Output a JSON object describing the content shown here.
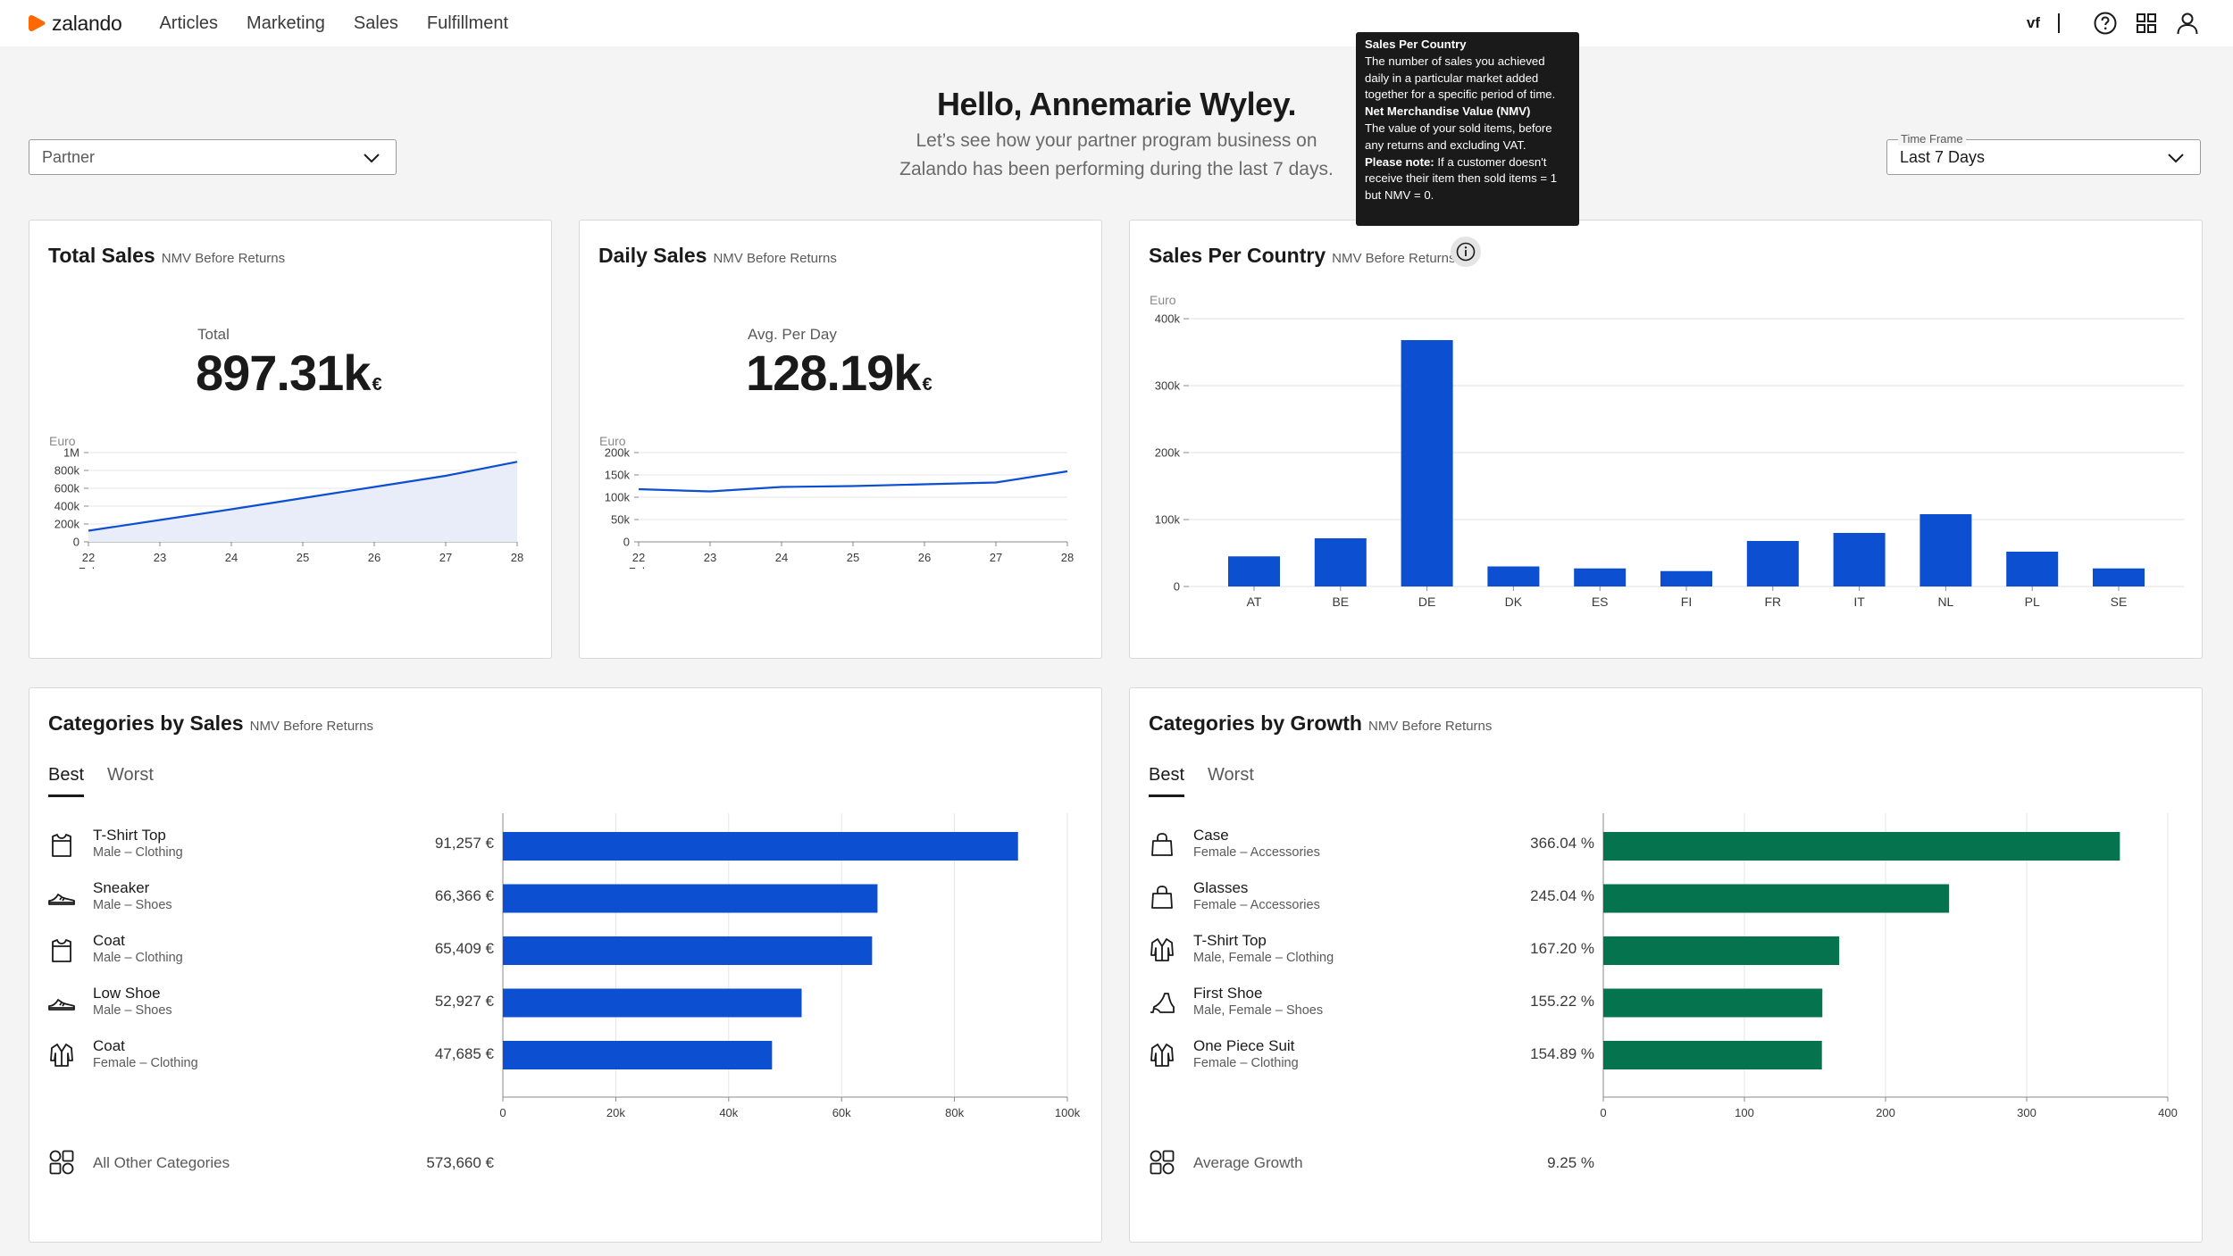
{
  "app": {
    "logo_text": "zalando"
  },
  "nav": {
    "items": [
      "Articles",
      "Marketing",
      "Sales",
      "Fulfillment"
    ]
  },
  "user": {
    "initials": "vf"
  },
  "greeting": {
    "title": "Hello, Annemarie Wyley.",
    "line1": "Let’s see how your partner program business on",
    "line2": "Zalando has been performing during the last 7 days."
  },
  "filters": {
    "partner": {
      "value": "Partner"
    },
    "timeframe": {
      "legend": "Time Frame",
      "value": "Last 7 Days"
    }
  },
  "tooltip": {
    "h1": "Sales Per Country",
    "p1": "The number of sales you achieved daily in a particular market added together for a specific period of time.",
    "h2": "Net Merchandise Value (NMV)",
    "p2": "The value of your sold items, before any returns and excluding VAT.",
    "h3": "Please note:",
    "p3": "If a customer doesn't receive their item then sold items = 1 but NMV = 0."
  },
  "cards": {
    "total": {
      "title": "Total Sales",
      "subtitle": "NMV Before Returns",
      "kpi_label": "Total",
      "kpi_value": "897.31k",
      "kpi_unit": "€"
    },
    "daily": {
      "title": "Daily Sales",
      "subtitle": "NMV Before Returns",
      "kpi_label": "Avg. Per Day",
      "kpi_value": "128.19k",
      "kpi_unit": "€"
    },
    "country": {
      "title": "Sales Per Country",
      "subtitle": "NMV Before Returns"
    },
    "cat_sales": {
      "title": "Categories by Sales",
      "subtitle": "NMV Before Returns",
      "tabs": [
        "Best",
        "Worst"
      ],
      "items": [
        {
          "name": "T-Shirt Top",
          "sub": "Male – Clothing",
          "value_label": "91,257 €",
          "icon": "tshirt-icon"
        },
        {
          "name": "Sneaker",
          "sub": "Male – Shoes",
          "value_label": "66,366 €",
          "icon": "sneaker-icon"
        },
        {
          "name": "Coat",
          "sub": "Male – Clothing",
          "value_label": "65,409 €",
          "icon": "tshirt-icon"
        },
        {
          "name": "Low Shoe",
          "sub": "Male – Shoes",
          "value_label": "52,927 €",
          "icon": "sneaker-icon"
        },
        {
          "name": "Coat",
          "sub": "Female – Clothing",
          "value_label": "47,685 €",
          "icon": "coat-icon"
        }
      ],
      "footer": {
        "name": "All Other Categories",
        "value": "573,660 €"
      }
    },
    "cat_growth": {
      "title": "Categories by Growth",
      "subtitle": "NMV Before Returns",
      "tabs": [
        "Best",
        "Worst"
      ],
      "items": [
        {
          "name": "Case",
          "sub": "Female – Accessories",
          "value_label": "366.04 %",
          "icon": "bag-icon"
        },
        {
          "name": "Glasses",
          "sub": "Female – Accessories",
          "value_label": "245.04 %",
          "icon": "bag-icon"
        },
        {
          "name": "T-Shirt Top",
          "sub": "Male, Female – Clothing",
          "value_label": "167.20 %",
          "icon": "coat-icon"
        },
        {
          "name": "First Shoe",
          "sub": "Male, Female – Shoes",
          "value_label": "155.22 %",
          "icon": "heel-icon"
        },
        {
          "name": "One Piece Suit",
          "sub": "Female – Clothing",
          "value_label": "154.89 %",
          "icon": "coat-icon"
        }
      ],
      "footer": {
        "name": "Average Growth",
        "value": "9.25 %"
      }
    }
  },
  "colors": {
    "blue": "#0c4fd0",
    "green": "#05734e",
    "accent": "#ff6900"
  },
  "chart_data": [
    {
      "id": "total",
      "type": "area",
      "ylabel": "Euro",
      "x": [
        "22",
        "23",
        "24",
        "25",
        "26",
        "27",
        "28"
      ],
      "x_sublabel": "Feb",
      "values": [
        125000,
        245000,
        365000,
        490000,
        615000,
        740000,
        897310
      ],
      "yticks": [
        0,
        200000,
        400000,
        600000,
        800000,
        1000000
      ],
      "ytick_labels": [
        "0",
        "200k",
        "400k",
        "600k",
        "800k",
        "1M"
      ],
      "ylim": [
        0,
        1000000
      ]
    },
    {
      "id": "daily",
      "type": "line",
      "ylabel": "Euro",
      "x": [
        "22",
        "23",
        "24",
        "25",
        "26",
        "27",
        "28"
      ],
      "x_sublabel": "Feb",
      "values": [
        118000,
        113000,
        123000,
        125000,
        129000,
        133000,
        158000
      ],
      "yticks": [
        0,
        50000,
        100000,
        150000,
        200000
      ],
      "ytick_labels": [
        "0",
        "50k",
        "100k",
        "150k",
        "200k"
      ],
      "ylim": [
        0,
        200000
      ]
    },
    {
      "id": "country",
      "type": "bar",
      "ylabel": "Euro",
      "categories": [
        "AT",
        "BE",
        "DE",
        "DK",
        "ES",
        "FI",
        "FR",
        "IT",
        "NL",
        "PL",
        "SE"
      ],
      "values": [
        45000,
        72000,
        368000,
        30000,
        27000,
        23000,
        68000,
        80000,
        108000,
        52000,
        27000
      ],
      "yticks": [
        0,
        100000,
        200000,
        300000,
        400000
      ],
      "ytick_labels": [
        "0",
        "100k",
        "200k",
        "300k",
        "400k"
      ],
      "ylim": [
        0,
        400000
      ],
      "grid": true
    },
    {
      "id": "cat_sales",
      "type": "bar",
      "orientation": "horizontal",
      "categories": [
        "T-Shirt Top",
        "Sneaker",
        "Coat",
        "Low Shoe",
        "Coat"
      ],
      "values": [
        91257,
        66366,
        65409,
        52927,
        47685
      ],
      "xticks": [
        0,
        20000,
        40000,
        60000,
        80000,
        100000
      ],
      "xtick_labels": [
        "0",
        "20k",
        "40k",
        "60k",
        "80k",
        "100k"
      ],
      "xlim": [
        0,
        100000
      ]
    },
    {
      "id": "cat_growth",
      "type": "bar",
      "orientation": "horizontal",
      "categories": [
        "Case",
        "Glasses",
        "T-Shirt Top",
        "First Shoe",
        "One Piece Suit"
      ],
      "values": [
        366.04,
        245.04,
        167.2,
        155.22,
        154.89
      ],
      "xticks": [
        0,
        100,
        200,
        300,
        400
      ],
      "xtick_labels": [
        "0",
        "100",
        "200",
        "300",
        "400"
      ],
      "xlim": [
        0,
        400
      ]
    }
  ]
}
